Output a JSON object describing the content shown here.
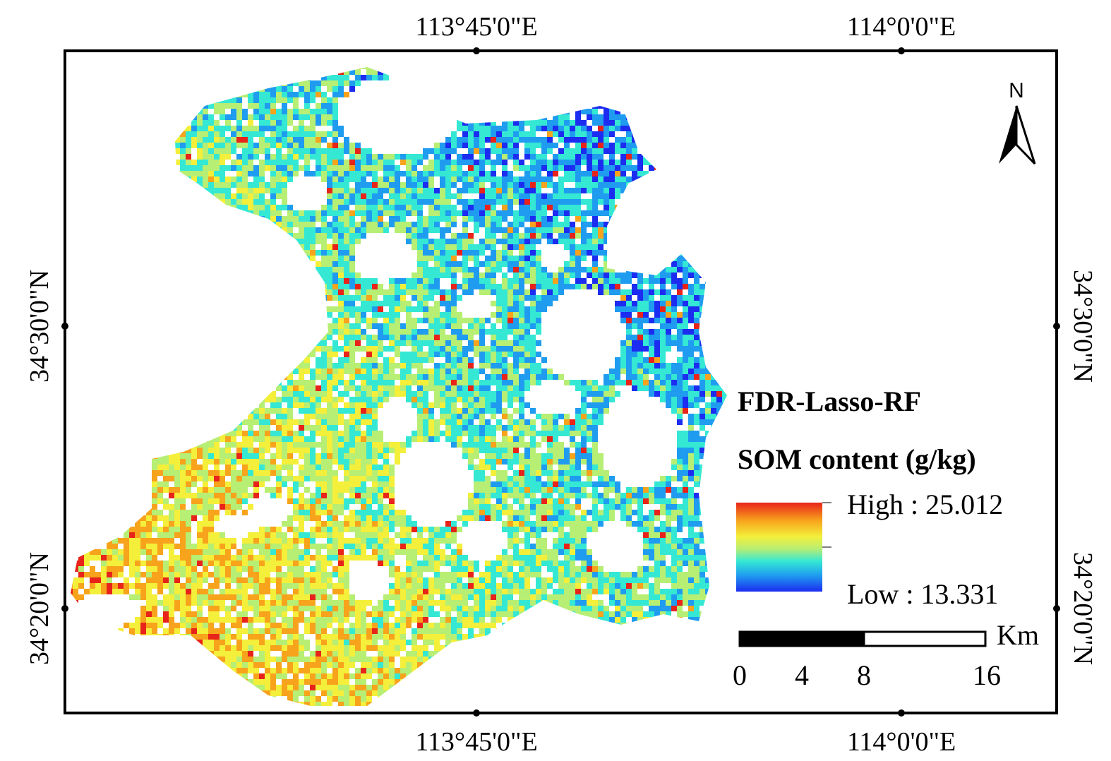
{
  "map": {
    "type": "raster-map",
    "model_label": "FDR-Lasso-RF",
    "axes": {
      "top_ticks": [
        "113°45'0\"E",
        "114°0'0\"E"
      ],
      "bottom_ticks": [
        "113°45'0\"E",
        "114°0'0\"E"
      ],
      "left_ticks": [
        "34°30'0\"N",
        "34°20'0\"N"
      ],
      "right_ticks": [
        "34°30'0\"N",
        "34°20'0\"N"
      ]
    },
    "legend": {
      "title": "SOM content (g/kg)",
      "high_label": "High : 25.012",
      "low_label": "Low : 13.331",
      "high_value": 25.012,
      "low_value": 13.331,
      "gradient_colors": [
        "#e8231a",
        "#f7a31c",
        "#f4ef3a",
        "#b7ee74",
        "#34e8d4",
        "#1f9cf0",
        "#1c2cf0"
      ]
    },
    "scale_bar": {
      "unit": "Km",
      "ticks": [
        "0",
        "4",
        "8",
        "16"
      ]
    },
    "north_arrow": {
      "label": "N"
    }
  }
}
